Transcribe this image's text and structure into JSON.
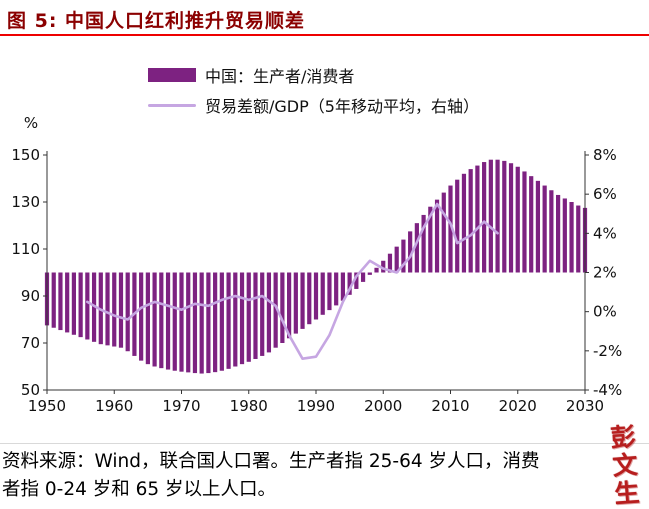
{
  "header": {
    "title": "图 5: 中国人口红利推升贸易顺差"
  },
  "colors": {
    "title": "#8b0000",
    "title_rule": "#ee0000",
    "bar": "#7d2281",
    "line": "#c6a6e2",
    "axis": "#333333"
  },
  "legend": {
    "bar": {
      "label": "中国：生产者/消费者",
      "color": "#7d2281"
    },
    "line": {
      "label": "贸易差额/GDP（5年移动平均，右轴）",
      "color": "#c6a6e2"
    }
  },
  "chart_data": {
    "type": "combo-bar-line",
    "title": "中国人口红利推升贸易顺差",
    "grid": false,
    "legend_position": "top-center",
    "x_axis": {
      "min": 1950,
      "max": 2030,
      "ticks": [
        1950,
        1960,
        1970,
        1980,
        1990,
        2000,
        2010,
        2020,
        2030
      ]
    },
    "left_axis": {
      "label": "%",
      "min": 50,
      "max": 150,
      "ticks": [
        150,
        130,
        110,
        90,
        70,
        50
      ]
    },
    "right_axis": {
      "min": -4,
      "max": 8,
      "ticks": [
        8,
        6,
        4,
        2,
        0,
        -2,
        -4
      ],
      "suffix": "%"
    },
    "bar_series": {
      "name": "中国：生产者/消费者",
      "axis": "left",
      "baseline": 100,
      "start_year": 1950,
      "style": "thin-vertical-stripes",
      "values": [
        77.5,
        76.5,
        75.5,
        74.5,
        73.5,
        72.5,
        71.5,
        70.5,
        69.5,
        69,
        68.5,
        68,
        66.5,
        64.5,
        62.5,
        61,
        60,
        59.3,
        58.7,
        58.2,
        57.8,
        57.5,
        57.2,
        57,
        57.2,
        57.6,
        58.2,
        59,
        60,
        61,
        62,
        63.2,
        64.5,
        66,
        68,
        70,
        72,
        74,
        76,
        78,
        80,
        82,
        84,
        86,
        88,
        90.5,
        93,
        96,
        99,
        102,
        105,
        108,
        111,
        114,
        117.5,
        121,
        124.5,
        128,
        131,
        134,
        137,
        139.5,
        142,
        144,
        145.5,
        147,
        148,
        148,
        147.5,
        146.5,
        145,
        143,
        141,
        139,
        137,
        135,
        133,
        131.5,
        130,
        128.5,
        127.5
      ]
    },
    "line_series": {
      "name": "贸易差额/GDP（5年移动平均，右轴）",
      "axis": "right",
      "points": [
        [
          1956,
          0.5
        ],
        [
          1958,
          0.1
        ],
        [
          1960,
          -0.2
        ],
        [
          1962,
          -0.4
        ],
        [
          1964,
          0.2
        ],
        [
          1966,
          0.5
        ],
        [
          1968,
          0.3
        ],
        [
          1970,
          0.1
        ],
        [
          1972,
          0.4
        ],
        [
          1974,
          0.3
        ],
        [
          1976,
          0.6
        ],
        [
          1978,
          0.8
        ],
        [
          1980,
          0.6
        ],
        [
          1982,
          0.8
        ],
        [
          1984,
          0.3
        ],
        [
          1986,
          -1.2
        ],
        [
          1988,
          -2.4
        ],
        [
          1990,
          -2.3
        ],
        [
          1992,
          -1.2
        ],
        [
          1994,
          0.5
        ],
        [
          1996,
          1.8
        ],
        [
          1998,
          2.6
        ],
        [
          2000,
          2.2
        ],
        [
          2002,
          2.0
        ],
        [
          2004,
          2.8
        ],
        [
          2006,
          4.3
        ],
        [
          2008,
          5.5
        ],
        [
          2010,
          4.5
        ],
        [
          2011,
          3.5
        ],
        [
          2013,
          3.9
        ],
        [
          2015,
          4.6
        ],
        [
          2016,
          4.3
        ],
        [
          2017,
          4.0
        ]
      ]
    }
  },
  "footer": {
    "line1": "资料来源：Wind，联合国人口署。生产者指 25-64 岁人口，消费",
    "line2": "者指 0-24 岁和 65 岁以上人口。"
  },
  "watermark": {
    "text": "彭文生",
    "color": "#b41212"
  }
}
